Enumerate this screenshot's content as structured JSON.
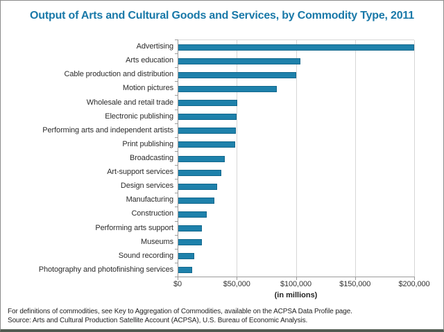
{
  "title": "Output of Arts and Cultural Goods and Services, by Commodity Type, 2011",
  "chart_data": {
    "type": "bar",
    "orientation": "horizontal",
    "title": "Output of Arts and Cultural Goods and Services, by Commodity Type, 2011",
    "categories": [
      "Advertising",
      "Arts education",
      "Cable production and distribution",
      "Motion pictures",
      "Wholesale and retail trade",
      "Electronic publishing",
      "Performing arts and independent artists",
      "Print publishing",
      "Broadcasting",
      "Art-support services",
      "Design services",
      "Manufacturing",
      "Construction",
      "Performing arts support",
      "Museums",
      "Sound recording",
      "Photography and photofinishing services"
    ],
    "values": [
      200000,
      104000,
      100500,
      83800,
      50300,
      49600,
      49200,
      48800,
      39700,
      36900,
      33300,
      31000,
      24500,
      20800,
      20400,
      14300,
      12200
    ],
    "xlabel": "(in millions)",
    "ylabel": "",
    "xlim": [
      0,
      200000
    ],
    "xticks": [
      {
        "value": 0,
        "label": "$0"
      },
      {
        "value": 50000,
        "label": "$50,000"
      },
      {
        "value": 100000,
        "label": "$100,000"
      },
      {
        "value": 150000,
        "label": "$150,000"
      },
      {
        "value": 200000,
        "label": "$200,000"
      }
    ],
    "grid": true,
    "legend": "none"
  },
  "axis": {
    "x_title": "(in millions)"
  },
  "notes": {
    "line1": "For definitions of commodities, see Key to Aggregation of Commodities, available on the ACPSA Data Profile page.",
    "line2": "Source: Arts and Cultural Production Satellite Account (ACPSA), U.S. Bureau of Economic Analysis."
  },
  "colors": {
    "title": "#1878a8",
    "bar_fill": "#1e81ab",
    "bar_border": "#11678c",
    "gridline": "#d6d6d6",
    "axis_line": "#9b9b9b"
  }
}
